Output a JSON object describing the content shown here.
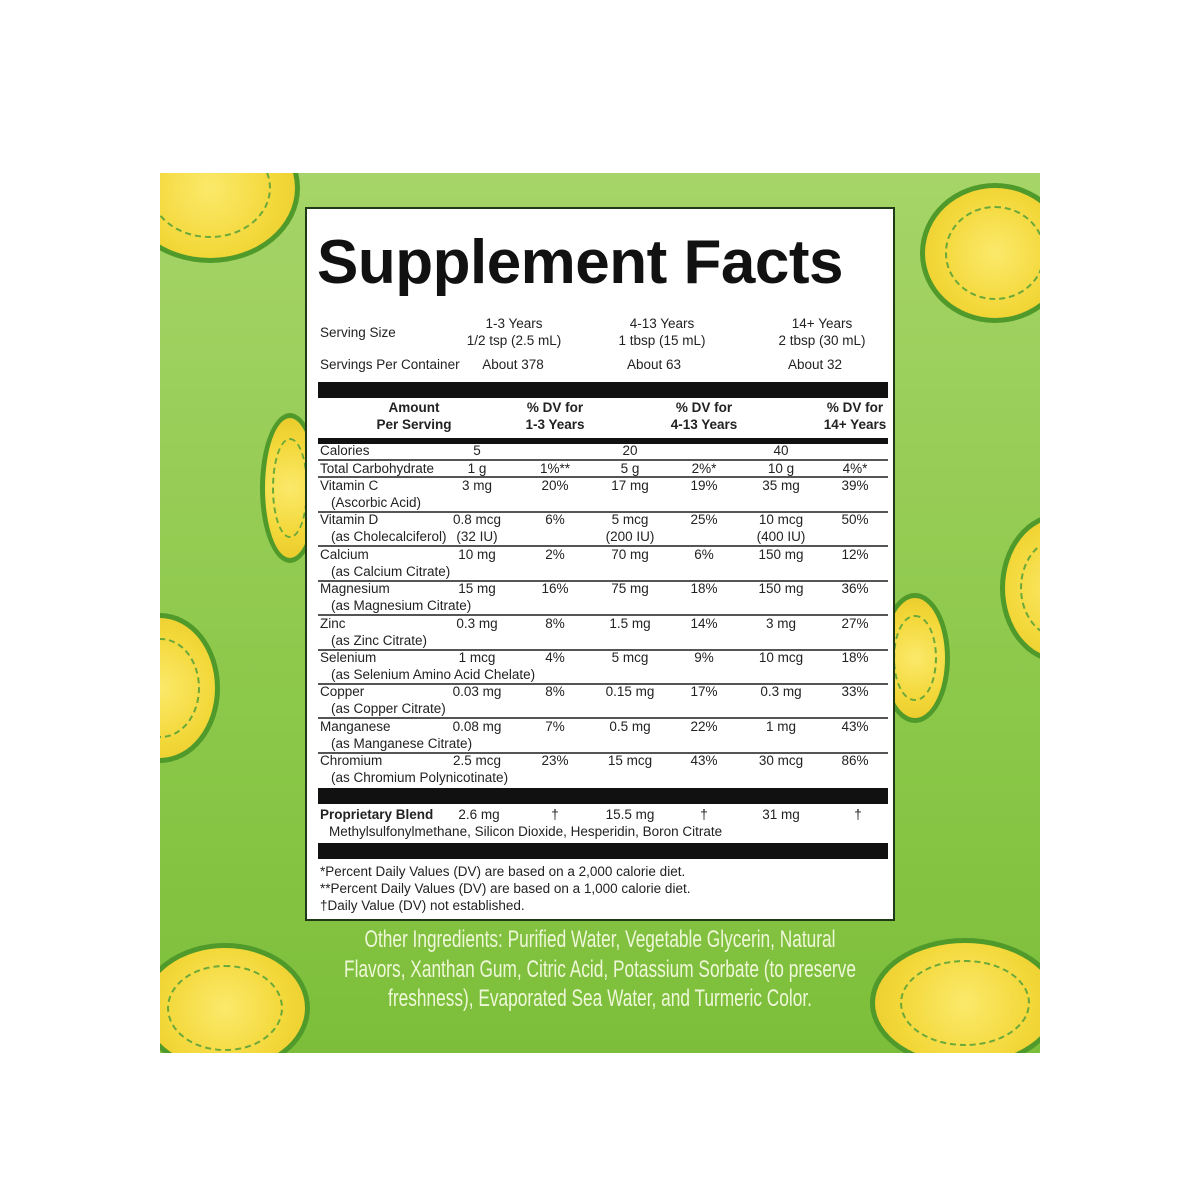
{
  "title": "Supplement Facts",
  "serving": {
    "serving_size_label": "Serving Size",
    "servings_per_container_label": "Servings Per Container",
    "groups": [
      {
        "age": "1-3 Years",
        "size": "1/2 tsp (2.5 mL)",
        "servings": "About 378"
      },
      {
        "age": "4-13 Years",
        "size": "1 tbsp (15 mL)",
        "servings": "About 63"
      },
      {
        "age": "14+ Years",
        "size": "2 tbsp (30 mL)",
        "servings": "About 32"
      }
    ]
  },
  "header": {
    "amount": [
      "Amount",
      "Per Serving"
    ],
    "dv": [
      [
        "% DV for",
        "1-3 Years"
      ],
      [
        "% DV for",
        "4-13 Years"
      ],
      [
        "% DV for",
        "14+ Years"
      ]
    ]
  },
  "calories": {
    "label": "Calories",
    "values": [
      "5",
      "20",
      "40"
    ]
  },
  "rows": [
    {
      "name": "Total Carbohydrate",
      "sub": "",
      "cells": [
        "1 g",
        "1%**",
        "5 g",
        "2%*",
        "10 g",
        "4%*"
      ],
      "cells2": [
        "",
        "",
        ""
      ]
    },
    {
      "name": "Vitamin C",
      "sub": "(Ascorbic Acid)",
      "cells": [
        "3 mg",
        "20%",
        "17 mg",
        "19%",
        "35 mg",
        "39%"
      ],
      "cells2": [
        "",
        "",
        ""
      ]
    },
    {
      "name": "Vitamin D",
      "sub": "(as Cholecalciferol)",
      "cells": [
        "0.8 mcg",
        "6%",
        "5 mcg",
        "25%",
        "10 mcg",
        "50%"
      ],
      "cells2": [
        "(32 IU)",
        "(200 IU)",
        "(400 IU)"
      ]
    },
    {
      "name": "Calcium",
      "sub": "(as Calcium Citrate)",
      "cells": [
        "10 mg",
        "2%",
        "70 mg",
        "6%",
        "150 mg",
        "12%"
      ],
      "cells2": [
        "",
        "",
        ""
      ]
    },
    {
      "name": "Magnesium",
      "sub": "(as Magnesium Citrate)",
      "cells": [
        "15 mg",
        "16%",
        "75 mg",
        "18%",
        "150 mg",
        "36%"
      ],
      "cells2": [
        "",
        "",
        ""
      ]
    },
    {
      "name": "Zinc",
      "sub": "(as Zinc Citrate)",
      "cells": [
        "0.3 mg",
        "8%",
        "1.5 mg",
        "14%",
        "3 mg",
        "27%"
      ],
      "cells2": [
        "",
        "",
        ""
      ]
    },
    {
      "name": "Selenium",
      "sub": "(as Selenium Amino Acid Chelate)",
      "cells": [
        "1 mcg",
        "4%",
        "5 mcg",
        "9%",
        "10 mcg",
        "18%"
      ],
      "cells2": [
        "",
        "",
        ""
      ]
    },
    {
      "name": "Copper",
      "sub": "(as Copper Citrate)",
      "cells": [
        "0.03 mg",
        "8%",
        "0.15 mg",
        "17%",
        "0.3 mg",
        "33%"
      ],
      "cells2": [
        "",
        "",
        ""
      ]
    },
    {
      "name": "Manganese",
      "sub": "(as Manganese Citrate)",
      "cells": [
        "0.08 mg",
        "7%",
        "0.5 mg",
        "22%",
        "1 mg",
        "43%"
      ],
      "cells2": [
        "",
        "",
        ""
      ]
    },
    {
      "name": "Chromium",
      "sub": "(as Chromium Polynicotinate)",
      "cells": [
        "2.5 mcg",
        "23%",
        "15 mcg",
        "43%",
        "30 mcg",
        "86%"
      ],
      "cells2": [
        "",
        "",
        ""
      ]
    }
  ],
  "blend": {
    "name": "Proprietary Blend",
    "cells": [
      "2.6 mg",
      "†",
      "15.5 mg",
      "†",
      "31 mg",
      "†"
    ],
    "ingredients": "Methylsulfonylmethane, Silicon Dioxide, Hesperidin, Boron Citrate"
  },
  "footnotes": [
    "*Percent Daily Values (DV) are based on a 2,000 calorie diet.",
    "**Percent Daily Values (DV) are based on a 1,000 calorie diet.",
    "†Daily Value (DV) not established."
  ],
  "other_ingredients": [
    "Other Ingredients: Purified Water, Vegetable Glycerin, Natural",
    "Flavors, Xanthan Gum, Citric Acid, Potassium Sorbate (to preserve",
    "freshness), Evaporated Sea Water, and Turmeric Color."
  ],
  "colors": {
    "background_green": "#8ec94c",
    "lemon_yellow": "#f3d83a",
    "lemon_outline": "#4f9a2a",
    "panel_border": "#1f3a14"
  }
}
